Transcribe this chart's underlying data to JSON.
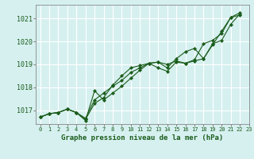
{
  "title": "Graphe pression niveau de la mer (hPa)",
  "bg_color": "#d6f0f0",
  "grid_color": "#ffffff",
  "line_color": "#1a5c1a",
  "xlim": [
    -0.5,
    23
  ],
  "ylim": [
    1016.4,
    1021.6
  ],
  "yticks": [
    1017,
    1018,
    1019,
    1020,
    1021
  ],
  "xticks": [
    0,
    1,
    2,
    3,
    4,
    5,
    6,
    7,
    8,
    9,
    10,
    11,
    12,
    13,
    14,
    15,
    16,
    17,
    18,
    19,
    20,
    21,
    22,
    23
  ],
  "series1": [
    1016.7,
    1016.85,
    1016.9,
    1017.05,
    1016.9,
    1016.65,
    1017.45,
    1017.75,
    1018.05,
    1018.3,
    1018.65,
    1018.85,
    1019.05,
    1019.1,
    1019.0,
    1019.15,
    1019.05,
    1019.15,
    1019.25,
    1019.85,
    1020.45,
    1021.05,
    1021.25
  ],
  "series2": [
    1016.7,
    1016.85,
    1016.9,
    1017.05,
    1016.9,
    1016.6,
    1017.3,
    1017.55,
    1018.1,
    1018.5,
    1018.85,
    1018.95,
    1019.05,
    1018.85,
    1018.7,
    1019.1,
    1019.05,
    1019.2,
    1019.9,
    1020.05,
    1020.35,
    1021.05,
    1021.15
  ],
  "series3": [
    1016.7,
    1016.85,
    1016.9,
    1017.05,
    1016.9,
    1016.55,
    1017.85,
    1017.45,
    1017.75,
    1018.05,
    1018.4,
    1018.75,
    1019.05,
    1019.1,
    1018.85,
    1019.25,
    1019.55,
    1019.7,
    1019.25,
    1019.9,
    1020.05,
    1020.75,
    1021.2
  ]
}
